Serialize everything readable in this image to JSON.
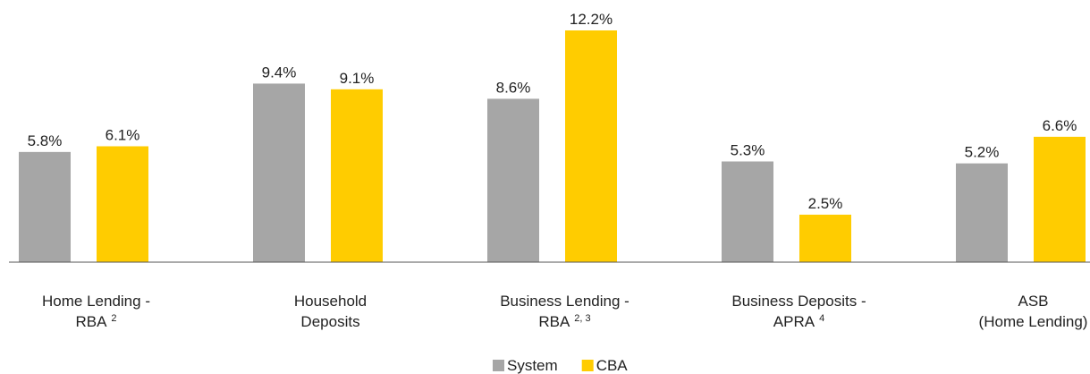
{
  "chart_data": {
    "type": "bar",
    "categories": [
      [
        "Home Lending -",
        "RBA"
      ],
      [
        "Household",
        "Deposits"
      ],
      [
        "Business Lending -",
        "RBA"
      ],
      [
        "Business Deposits -",
        "APRA"
      ],
      [
        "ASB",
        "(Home Lending)"
      ]
    ],
    "category_footnotes": [
      "2",
      null,
      "2, 3",
      "4",
      null
    ],
    "series": [
      {
        "name": "System",
        "color": "#a6a6a6",
        "values": [
          5.8,
          9.4,
          8.6,
          5.3,
          5.2
        ],
        "value_labels": [
          "5.8%",
          "9.4%",
          "8.6%",
          "5.3%",
          "5.2%"
        ]
      },
      {
        "name": "CBA",
        "color": "#ffcc00",
        "values": [
          6.1,
          9.1,
          12.2,
          2.5,
          6.6
        ],
        "value_labels": [
          "6.1%",
          "9.1%",
          "12.2%",
          "2.5%",
          "6.6%"
        ]
      }
    ],
    "ylim": [
      0,
      13
    ],
    "grid": false
  }
}
